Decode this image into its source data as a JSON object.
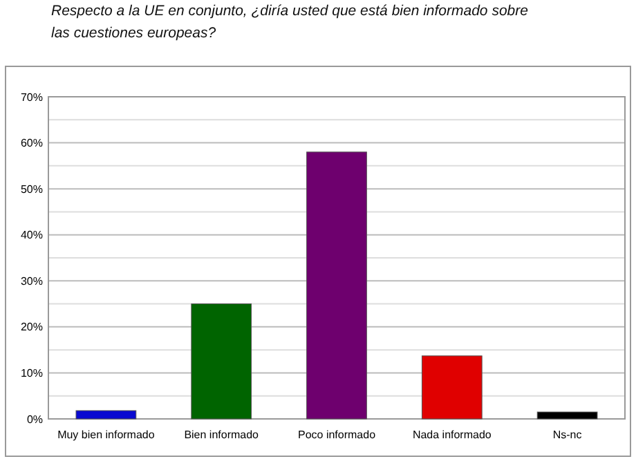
{
  "chart_data": {
    "type": "bar",
    "title": "Respecto a la UE en conjunto, ¿diría usted que está bien informado sobre las cuestiones europeas?",
    "categories": [
      "Muy bien informado",
      "Bien informado",
      "Poco informado",
      "Nada informado",
      "Ns-nc"
    ],
    "values": [
      1.8,
      25,
      58,
      13.7,
      1.5
    ],
    "colors": [
      "#0a0ad0",
      "#006400",
      "#6e006e",
      "#e00000",
      "#000000"
    ],
    "ylim": [
      0,
      70
    ],
    "yticks": [
      {
        "value": 0,
        "label": "0%"
      },
      {
        "value": 5,
        "label": null
      },
      {
        "value": 10,
        "label": "10%"
      },
      {
        "value": 15,
        "label": null
      },
      {
        "value": 20,
        "label": "20%"
      },
      {
        "value": 25,
        "label": null
      },
      {
        "value": 30,
        "label": "30%"
      },
      {
        "value": 35,
        "label": null
      },
      {
        "value": 40,
        "label": "40%"
      },
      {
        "value": 45,
        "label": null
      },
      {
        "value": 50,
        "label": "50%"
      },
      {
        "value": 55,
        "label": null
      },
      {
        "value": 60,
        "label": "60%"
      },
      {
        "value": 65,
        "label": null
      },
      {
        "value": 70,
        "label": "70%"
      }
    ],
    "grid": true
  }
}
